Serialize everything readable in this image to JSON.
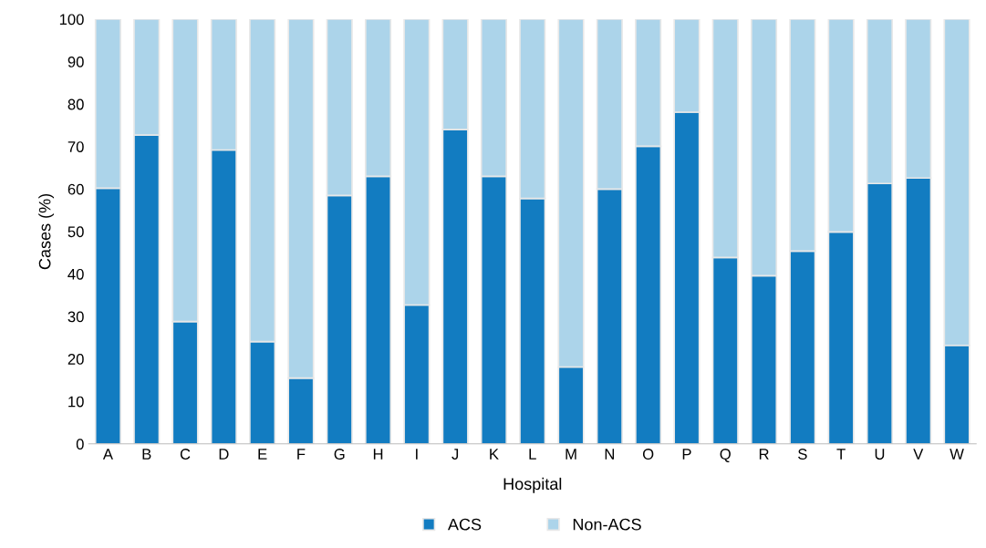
{
  "chart_data": {
    "type": "bar",
    "stacked": true,
    "xlabel": "Hospital",
    "ylabel": "Cases (%)",
    "categories": [
      "A",
      "B",
      "C",
      "D",
      "E",
      "F",
      "G",
      "H",
      "I",
      "J",
      "K",
      "L",
      "M",
      "N",
      "O",
      "P",
      "Q",
      "R",
      "S",
      "T",
      "U",
      "V",
      "W"
    ],
    "series": [
      {
        "name": "ACS",
        "color": "#127cc1",
        "values": [
          60.2,
          72.7,
          28.8,
          69.2,
          24.1,
          15.5,
          58.5,
          63,
          32.7,
          74,
          63,
          57.8,
          18.1,
          60,
          70.1,
          78.1,
          43.9,
          39.6,
          45.4,
          49.9,
          61.3,
          62.6,
          23.2
        ]
      },
      {
        "name": "Non-ACS",
        "color": "#acd4ea",
        "values": [
          39.8,
          27.3,
          71.2,
          30.8,
          75.9,
          84.5,
          41.5,
          37,
          67.3,
          26,
          37,
          42.2,
          81.9,
          40,
          29.9,
          21.9,
          56.1,
          60.4,
          54.6,
          50.1,
          38.7,
          37.4,
          76.8
        ]
      }
    ],
    "ylim": [
      0,
      100
    ],
    "yticks": [
      0,
      10,
      20,
      30,
      40,
      50,
      60,
      70,
      80,
      90,
      100
    ],
    "grid": false,
    "legend": "bottom"
  }
}
